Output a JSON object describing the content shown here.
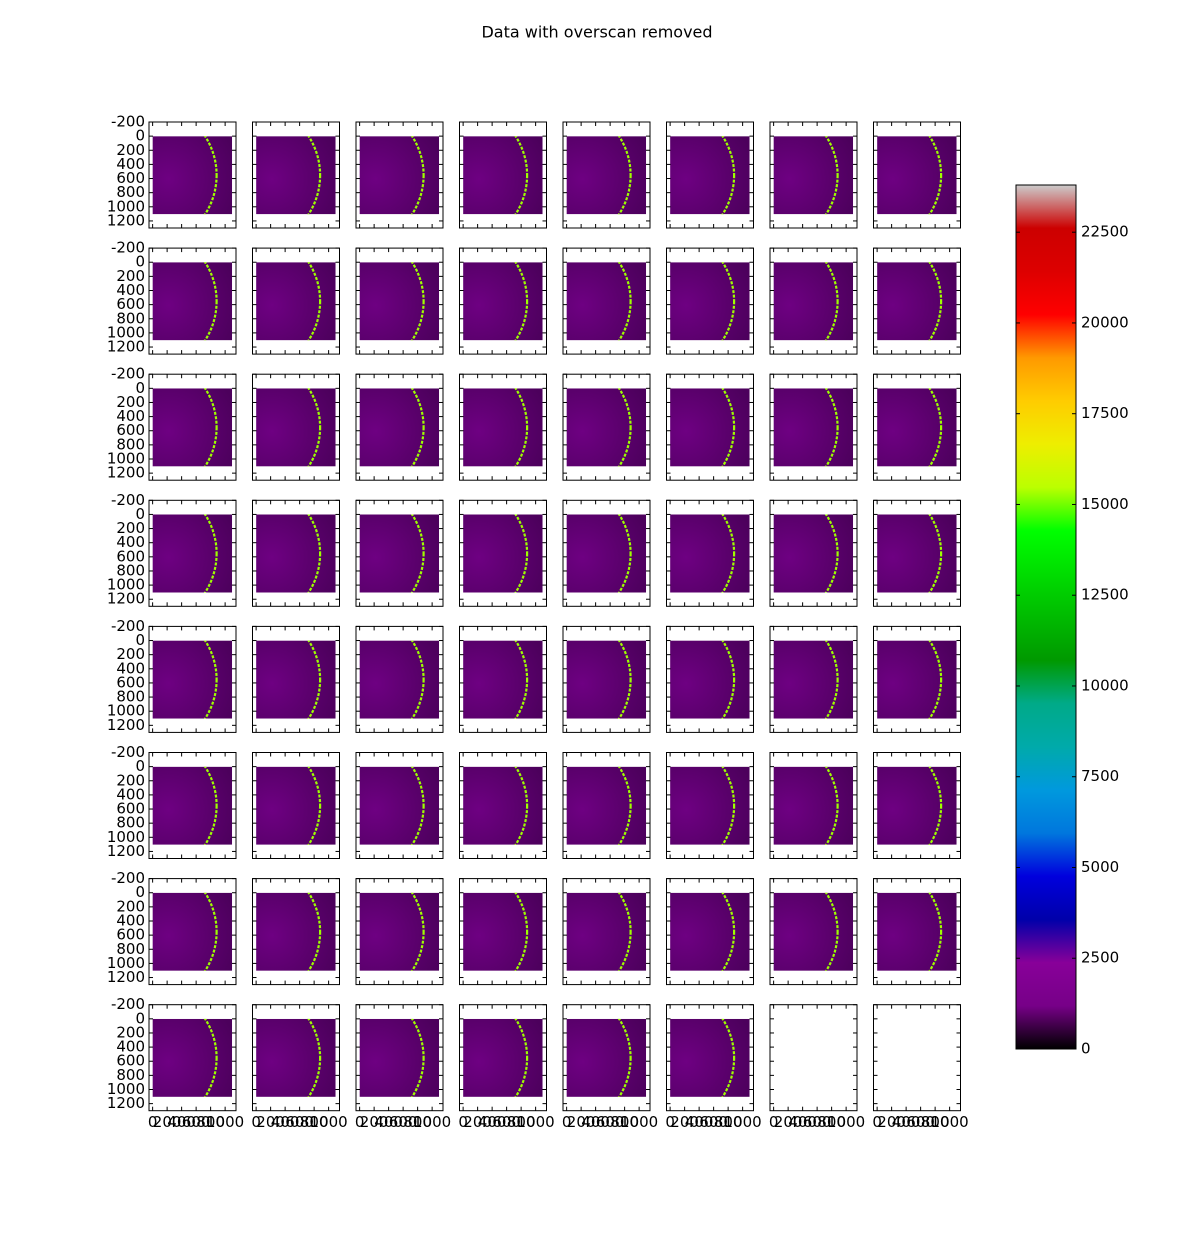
{
  "chart_data": {
    "type": "image-grid",
    "title": "Data with overscan removed",
    "rows": 8,
    "cols": 8,
    "panels": 62,
    "xlim": [
      -50,
      1150
    ],
    "ylim": [
      1300,
      -200
    ],
    "xticks": [
      0,
      200,
      400,
      600,
      800,
      1000
    ],
    "yticks": [
      -200,
      0,
      200,
      400,
      600,
      800,
      1000,
      1200
    ],
    "colorbar": {
      "lim": [
        0,
        23800
      ],
      "ticks": [
        0,
        2500,
        5000,
        7500,
        10000,
        12500,
        15000,
        17500,
        20000,
        22500
      ],
      "colormap": "nipy_spectral"
    }
  }
}
